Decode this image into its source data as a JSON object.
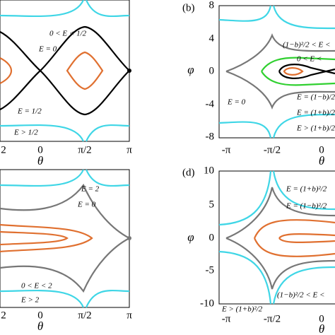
{
  "panels": [
    {
      "xticks": [
        "2",
        "0",
        "π/2",
        "π"
      ],
      "xlabel": "θ",
      "annotations": [
        "0 < E < 1/2",
        "E = 0",
        "E = 1/2",
        "E > 1/2"
      ]
    },
    {
      "label": "(b)",
      "ylabel": "φ",
      "yticks": [
        "8",
        "4",
        "0",
        "-4",
        "-8"
      ],
      "xticks": [
        "-π",
        "-π/2",
        "0"
      ],
      "xlabel": "θ",
      "annotations": [
        "(1−b)²/2 < E <",
        "0 < E <",
        "E = 0",
        "E = (1−b)/2",
        "E = (1+b)/2",
        "E > (1+b)/2"
      ]
    },
    {
      "xticks": [
        "2",
        "0",
        "π/2",
        "π"
      ],
      "xlabel": "θ",
      "annotations": [
        "E = 2",
        "E = 0",
        "0 < E < 2",
        "E > 2"
      ]
    },
    {
      "label": "(d)",
      "ylabel": "φ",
      "yticks": [
        "10",
        "5",
        "0",
        "-5",
        "-10"
      ],
      "xticks": [
        "-π",
        "-π/2",
        "0"
      ],
      "xlabel": "θ",
      "annotations": [
        "E = (1+b)²/2",
        "E = (1−b)²/2",
        "(1−b)²/2 < E <",
        "E > (1+b)²/2"
      ]
    }
  ]
}
